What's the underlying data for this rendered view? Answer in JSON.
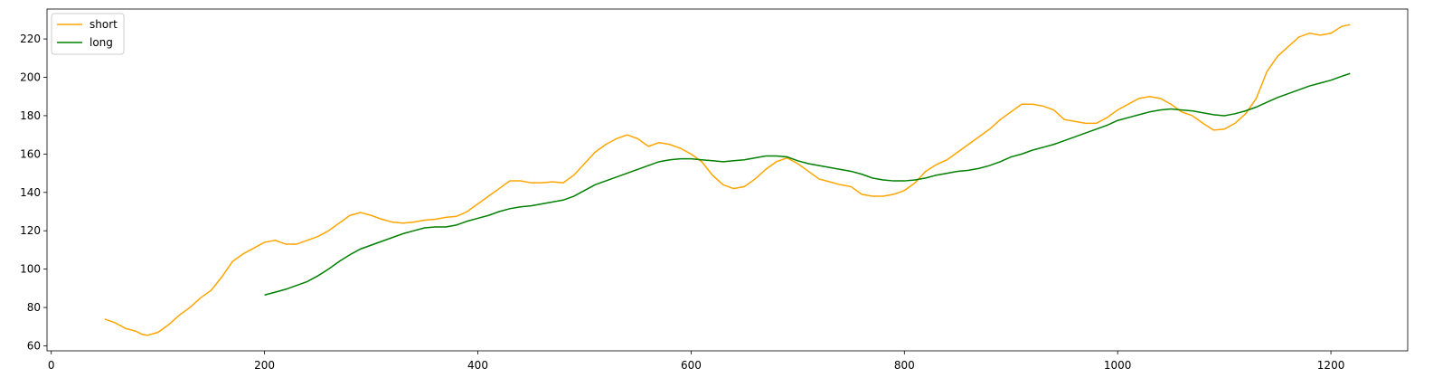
{
  "chart_data": {
    "type": "line",
    "series": [
      {
        "name": "short",
        "color": "#ffa500",
        "x": [
          50,
          60,
          70,
          80,
          85,
          90,
          100,
          110,
          120,
          130,
          140,
          150,
          160,
          170,
          180,
          190,
          200,
          210,
          220,
          230,
          240,
          250,
          260,
          270,
          280,
          290,
          300,
          310,
          320,
          330,
          340,
          350,
          360,
          370,
          380,
          390,
          400,
          410,
          420,
          430,
          440,
          450,
          460,
          470,
          480,
          490,
          500,
          510,
          520,
          530,
          540,
          550,
          560,
          570,
          580,
          590,
          600,
          610,
          620,
          630,
          640,
          650,
          660,
          670,
          680,
          690,
          700,
          710,
          720,
          730,
          740,
          750,
          760,
          770,
          780,
          790,
          800,
          810,
          820,
          830,
          840,
          850,
          860,
          870,
          880,
          890,
          900,
          910,
          920,
          930,
          940,
          950,
          960,
          970,
          980,
          990,
          1000,
          1010,
          1020,
          1030,
          1040,
          1050,
          1060,
          1070,
          1080,
          1090,
          1100,
          1110,
          1120,
          1130,
          1140,
          1150,
          1160,
          1170,
          1180,
          1190,
          1200,
          1210,
          1218
        ],
        "values": [
          74,
          72,
          69,
          67.5,
          66,
          65.5,
          67,
          71,
          76,
          80,
          85,
          89,
          96,
          104,
          108,
          111,
          114,
          115,
          113,
          113,
          115,
          117,
          120,
          124,
          128,
          129.5,
          128,
          126,
          124.5,
          124,
          124.5,
          125.5,
          126,
          127,
          127.5,
          130,
          134,
          138,
          142,
          146,
          146,
          145,
          145,
          145.5,
          145,
          149,
          155,
          161,
          165,
          168,
          170,
          168,
          164,
          166,
          165,
          163,
          160,
          156,
          149,
          144,
          142,
          143,
          147,
          152,
          156,
          158,
          155,
          151,
          147,
          145.5,
          144,
          143,
          139,
          138,
          138,
          139,
          141,
          145,
          151,
          154.5,
          157,
          161,
          165,
          169,
          173,
          178,
          182,
          186,
          186,
          185,
          183,
          178,
          177,
          176,
          176,
          179,
          183,
          186,
          189,
          190,
          189,
          186,
          182,
          180,
          176,
          172.5,
          173,
          176,
          181,
          189,
          203,
          211,
          216,
          221,
          223,
          222,
          223,
          226.5,
          227.5
        ]
      },
      {
        "name": "long",
        "color": "#008000",
        "x": [
          200,
          210,
          220,
          230,
          240,
          250,
          260,
          270,
          280,
          290,
          300,
          310,
          320,
          330,
          340,
          350,
          360,
          370,
          380,
          390,
          400,
          410,
          420,
          430,
          440,
          450,
          460,
          470,
          480,
          490,
          500,
          510,
          520,
          530,
          540,
          550,
          560,
          570,
          580,
          590,
          600,
          610,
          620,
          630,
          640,
          650,
          660,
          670,
          680,
          690,
          700,
          710,
          720,
          730,
          740,
          750,
          760,
          770,
          780,
          790,
          800,
          810,
          820,
          830,
          840,
          850,
          860,
          870,
          880,
          890,
          900,
          910,
          920,
          930,
          940,
          950,
          960,
          970,
          980,
          990,
          1000,
          1010,
          1020,
          1030,
          1040,
          1050,
          1060,
          1070,
          1080,
          1090,
          1100,
          1110,
          1120,
          1130,
          1140,
          1150,
          1160,
          1170,
          1180,
          1190,
          1200,
          1210,
          1218
        ],
        "values": [
          86.5,
          88,
          89.5,
          91.5,
          93.5,
          96.5,
          100,
          104,
          107.5,
          110.5,
          112.5,
          114.5,
          116.5,
          118.5,
          120,
          121.5,
          122,
          122,
          123,
          125,
          126.5,
          128,
          130,
          131.5,
          132.5,
          133,
          134,
          135,
          136,
          138,
          141,
          144,
          146,
          148,
          150,
          152,
          154,
          156,
          157,
          157.5,
          157.5,
          157,
          156.5,
          156,
          156.5,
          157,
          158,
          159,
          159,
          158.5,
          156.5,
          155,
          154,
          153,
          152,
          151,
          149.5,
          147.5,
          146.5,
          146,
          146,
          146.5,
          147.5,
          149,
          150,
          151,
          151.5,
          152.5,
          154,
          156,
          158.5,
          160,
          162,
          163.5,
          165,
          167,
          169,
          171,
          173,
          175,
          177.5,
          179,
          180.5,
          182,
          183,
          183.5,
          183,
          182.5,
          181.5,
          180.5,
          180,
          181,
          182.5,
          184.5,
          187,
          189.5,
          191.5,
          193.5,
          195.5,
          197,
          198.5,
          200.5,
          202
        ]
      }
    ],
    "xlim": [
      -4,
      1272
    ],
    "ylim": [
      57.4,
      235.6
    ],
    "xticks": [
      0,
      200,
      400,
      600,
      800,
      1000,
      1200
    ],
    "yticks": [
      60,
      80,
      100,
      120,
      140,
      160,
      180,
      200,
      220
    ],
    "grid": false,
    "legend": "upper-left"
  }
}
